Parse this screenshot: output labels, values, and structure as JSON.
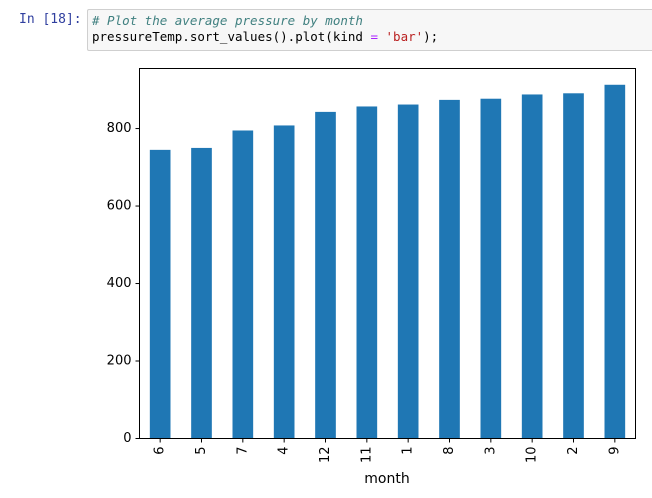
{
  "cell": {
    "prompt": "In [18]:",
    "code_line1": "# Plot the average pressure by month",
    "code_line2_pre": "pressureTemp.sort_values().plot(kind ",
    "code_line2_op": "=",
    "code_line2_sp": " ",
    "code_line2_str": "'bar'",
    "code_line2_post": ");"
  },
  "chart_data": {
    "type": "bar",
    "categories": [
      "6",
      "5",
      "7",
      "4",
      "12",
      "11",
      "1",
      "8",
      "3",
      "10",
      "2",
      "9"
    ],
    "values": [
      745,
      750,
      795,
      808,
      843,
      857,
      862,
      874,
      877,
      888,
      891,
      913
    ],
    "xlabel": "month",
    "ylabel": "",
    "ylim": [
      0,
      955
    ],
    "yticks": [
      0,
      200,
      400,
      600,
      800
    ],
    "bar_color": "#1f77b4",
    "grid": false,
    "legend": false
  }
}
